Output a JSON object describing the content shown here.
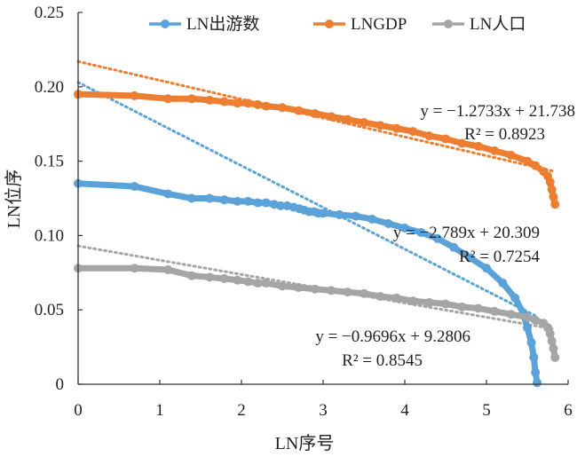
{
  "chart_data": {
    "type": "scatter",
    "title": "",
    "xlabel": "LN序号",
    "ylabel": "LN位序",
    "xlim": [
      0,
      6
    ],
    "ylim": [
      0,
      0.25
    ],
    "x_ticks": [
      "0",
      "1",
      "2",
      "3",
      "4",
      "5",
      "6"
    ],
    "y_ticks": [
      "0",
      "0.05",
      "0.10",
      "0.15",
      "0.20",
      "0.25"
    ],
    "legend_position": "top",
    "grid": false,
    "series": [
      {
        "name": "LN出游数",
        "color": "#5aa2d8",
        "x": [
          0,
          0.69,
          1.1,
          1.39,
          1.61,
          1.79,
          1.95,
          2.08,
          2.2,
          2.3,
          2.4,
          2.48,
          2.56,
          2.64,
          2.71,
          2.77,
          2.83,
          2.89,
          2.94,
          3.0,
          3.2,
          3.4,
          3.6,
          3.8,
          4.0,
          4.2,
          4.4,
          4.6,
          4.8,
          5.0,
          5.2,
          5.35,
          5.45,
          5.5,
          5.55,
          5.58,
          5.6,
          5.62
        ],
        "y": [
          0.135,
          0.133,
          0.128,
          0.125,
          0.125,
          0.124,
          0.123,
          0.123,
          0.122,
          0.122,
          0.121,
          0.12,
          0.12,
          0.119,
          0.118,
          0.117,
          0.116,
          0.116,
          0.115,
          0.115,
          0.114,
          0.113,
          0.111,
          0.108,
          0.105,
          0.102,
          0.098,
          0.092,
          0.085,
          0.078,
          0.068,
          0.058,
          0.048,
          0.038,
          0.028,
          0.018,
          0.008,
          0.001
        ],
        "trend": {
          "equation": "y = −2.789x + 20.309",
          "r2": "R² = 0.7254",
          "y0": 0.203,
          "y1": 0.046,
          "x1": 5.6
        }
      },
      {
        "name": "LNGDP",
        "color": "#ed7d31",
        "x": [
          0,
          0.69,
          1.1,
          1.39,
          1.61,
          1.79,
          1.95,
          2.08,
          2.2,
          2.3,
          2.5,
          2.7,
          2.9,
          3.1,
          3.3,
          3.5,
          3.7,
          3.9,
          4.1,
          4.3,
          4.5,
          4.7,
          4.9,
          5.1,
          5.3,
          5.5,
          5.6,
          5.7,
          5.75,
          5.78,
          5.8,
          5.82,
          5.84
        ],
        "y": [
          0.195,
          0.194,
          0.192,
          0.192,
          0.191,
          0.19,
          0.189,
          0.189,
          0.188,
          0.187,
          0.186,
          0.184,
          0.182,
          0.18,
          0.178,
          0.176,
          0.174,
          0.172,
          0.17,
          0.167,
          0.165,
          0.162,
          0.16,
          0.157,
          0.154,
          0.15,
          0.147,
          0.143,
          0.14,
          0.136,
          0.131,
          0.126,
          0.121
        ],
        "trend": {
          "equation": "y = −1.2733x + 21.738",
          "r2": "R² = 0.8923",
          "y0": 0.217,
          "y1": 0.143,
          "x1": 5.84
        }
      },
      {
        "name": "LN人口",
        "color": "#a5a5a5",
        "x": [
          0,
          0.69,
          1.1,
          1.39,
          1.61,
          1.79,
          1.95,
          2.08,
          2.2,
          2.3,
          2.5,
          2.7,
          2.9,
          3.1,
          3.3,
          3.5,
          3.7,
          3.9,
          4.1,
          4.3,
          4.5,
          4.7,
          4.9,
          5.1,
          5.3,
          5.5,
          5.6,
          5.7,
          5.75,
          5.78,
          5.8,
          5.82,
          5.84
        ],
        "y": [
          0.078,
          0.078,
          0.077,
          0.073,
          0.072,
          0.071,
          0.07,
          0.069,
          0.068,
          0.068,
          0.066,
          0.065,
          0.064,
          0.063,
          0.062,
          0.061,
          0.059,
          0.058,
          0.056,
          0.055,
          0.054,
          0.052,
          0.051,
          0.049,
          0.047,
          0.045,
          0.043,
          0.041,
          0.038,
          0.034,
          0.029,
          0.024,
          0.018
        ],
        "trend": {
          "equation": "y = −0.9696x + 9.2806",
          "r2": "R² = 0.8545",
          "y0": 0.093,
          "y1": 0.037,
          "x1": 5.84
        }
      }
    ]
  }
}
